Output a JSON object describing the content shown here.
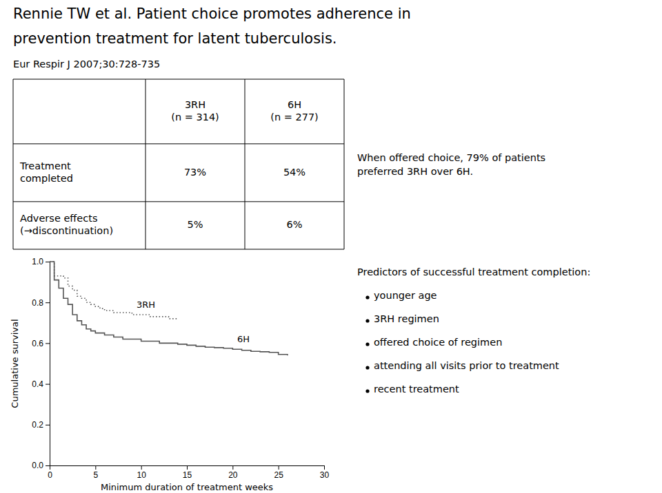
{
  "chart_data": {
    "type": "step",
    "title": [
      "Rennie TW et al. Patient choice promotes adherence in",
      "prevention treatment for latent tuberculosis."
    ],
    "subtitle": "Eur Respir J 2007;30:728-735",
    "table": {
      "col_headers": [
        [
          "3RH",
          "(n = 314)"
        ],
        [
          "6H",
          "(n = 277)"
        ]
      ],
      "rows": [
        {
          "label": [
            "Treatment",
            "completed"
          ],
          "values": [
            73,
            54
          ],
          "value_labels": [
            "73%",
            "54%"
          ]
        },
        {
          "label": [
            "Adverse effects",
            "(→discontinuation)"
          ],
          "values": [
            5,
            6
          ],
          "value_labels": [
            "5%",
            "6%"
          ]
        }
      ]
    },
    "choice_text": [
      "When offered choice, 79% of patients",
      "preferred 3RH over 6H."
    ],
    "predictors_title": "Predictors of successful treatment completion:",
    "predictors": [
      "younger age",
      "3RH regimen",
      "offered choice of regimen",
      "attending all visits prior to treatment",
      "recent treatment"
    ],
    "x_label": "Minimum duration of treatment weeks",
    "y_label": "Cumulative survival",
    "xlim": [
      0,
      30
    ],
    "ylim": [
      0.0,
      1.0
    ],
    "xticks": [
      0,
      5,
      10,
      15,
      20,
      25,
      30
    ],
    "yticks": [
      {
        "value": 0.0,
        "label": "0.0"
      },
      {
        "value": 0.2,
        "label": "0.2"
      },
      {
        "value": 0.4,
        "label": "0.4"
      },
      {
        "value": 0.6,
        "label": "0.6"
      },
      {
        "value": 0.8,
        "label": "0.8"
      },
      {
        "value": 1.0,
        "label": "1.0"
      }
    ],
    "grid": false,
    "series": [
      {
        "color": "#555555",
        "line_style": "dotted",
        "x": [
          0,
          0.5,
          1,
          1.5,
          2,
          2.5,
          3,
          3.5,
          4,
          4.5,
          5,
          5.5,
          6,
          7,
          8,
          9,
          10,
          11,
          12,
          13,
          14
        ],
        "values": [
          1.0,
          0.93,
          0.93,
          0.92,
          0.88,
          0.86,
          0.83,
          0.82,
          0.8,
          0.79,
          0.78,
          0.77,
          0.76,
          0.75,
          0.75,
          0.74,
          0.74,
          0.73,
          0.73,
          0.72,
          0.72
        ]
      },
      {
        "color": "#555555",
        "line_style": "solid",
        "x": [
          0,
          0.5,
          1,
          1.5,
          2,
          2.5,
          3,
          3.5,
          4,
          4.5,
          5,
          5.5,
          6,
          6.5,
          7,
          7.5,
          8,
          9,
          10,
          11,
          12,
          13,
          14,
          15,
          16,
          17,
          18,
          19,
          20,
          21,
          22,
          23,
          24,
          25,
          26
        ],
        "values": [
          1.0,
          0.91,
          0.87,
          0.82,
          0.79,
          0.74,
          0.71,
          0.69,
          0.67,
          0.66,
          0.65,
          0.65,
          0.64,
          0.64,
          0.63,
          0.63,
          0.62,
          0.62,
          0.61,
          0.61,
          0.6,
          0.6,
          0.595,
          0.59,
          0.585,
          0.58,
          0.578,
          0.575,
          0.57,
          0.565,
          0.56,
          0.558,
          0.555,
          0.545,
          0.54
        ]
      }
    ],
    "annotations": [
      {
        "text": "3RH",
        "x": 9.5,
        "y": 0.775
      },
      {
        "text": "6H",
        "x": 20.5,
        "y": 0.605
      }
    ]
  }
}
